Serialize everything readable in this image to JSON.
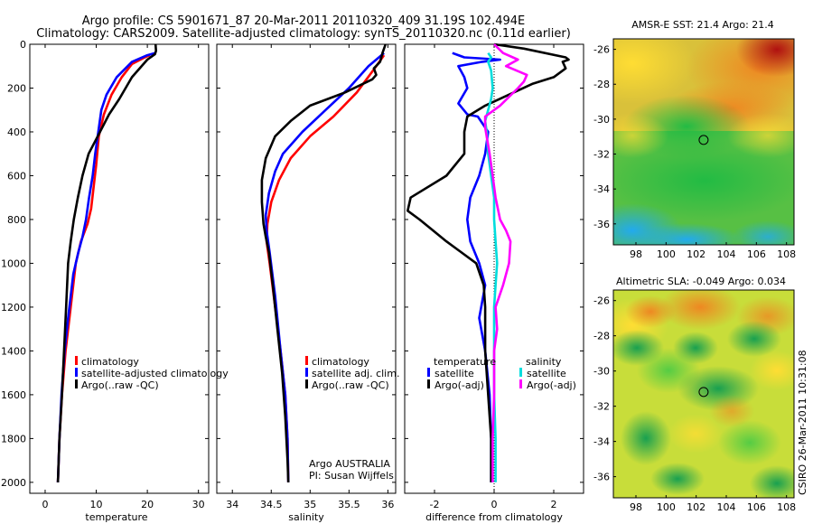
{
  "header": {
    "line1": "Argo profile: CS 5901671_87 20-Mar-2011 20110320_409 31.19S 102.494E",
    "line2": "Climatology: CARS2009. Satellite-adjusted climatology: synTS_20110320.nc (0.11d earlier)"
  },
  "side_stamp": "CSIRO 26-Mar-2011 10:31:08",
  "chart_data": [
    {
      "id": "temperature",
      "type": "line",
      "xlabel": "temperature",
      "ylabel": "",
      "xlim": [
        -3,
        32
      ],
      "ylim": [
        2050,
        0
      ],
      "xticks": [
        0,
        10,
        20,
        30
      ],
      "yticks": [
        0,
        200,
        400,
        600,
        800,
        1000,
        1200,
        1400,
        1600,
        1800,
        2000
      ],
      "legend": {
        "position": "bottom-center",
        "entries": [
          "climatology",
          "satellite-adjusted climatology",
          "Argo(..raw -QC)"
        ]
      },
      "series": [
        {
          "name": "climatology",
          "color": "#ff0000",
          "points": [
            [
              20.5,
              50
            ],
            [
              19.5,
              60
            ],
            [
              17,
              90
            ],
            [
              15,
              150
            ],
            [
              13,
              230
            ],
            [
              11.5,
              320
            ],
            [
              10.5,
              420
            ],
            [
              10,
              550
            ],
            [
              9.5,
              650
            ],
            [
              9,
              750
            ],
            [
              8.3,
              820
            ],
            [
              7,
              900
            ],
            [
              6,
              1000
            ],
            [
              5,
              1200
            ],
            [
              4,
              1400
            ],
            [
              3.3,
              1600
            ],
            [
              2.8,
              1800
            ],
            [
              2.5,
              2000
            ]
          ]
        },
        {
          "name": "satellite-adjusted climatology",
          "color": "#0000ff",
          "points": [
            [
              21.5,
              40
            ],
            [
              20,
              50
            ],
            [
              17,
              80
            ],
            [
              14,
              150
            ],
            [
              12,
              230
            ],
            [
              11,
              300
            ],
            [
              10.4,
              400
            ],
            [
              9.8,
              500
            ],
            [
              9.3,
              600
            ],
            [
              8.6,
              700
            ],
            [
              8,
              800
            ],
            [
              7.3,
              880
            ],
            [
              6.5,
              950
            ],
            [
              5.5,
              1050
            ],
            [
              4.5,
              1250
            ],
            [
              3.8,
              1400
            ],
            [
              3.2,
              1600
            ],
            [
              2.8,
              1800
            ],
            [
              2.5,
              2000
            ]
          ]
        },
        {
          "name": "Argo(..raw -QC)",
          "color": "#000000",
          "points": [
            [
              21.6,
              0
            ],
            [
              21.7,
              30
            ],
            [
              21.5,
              45
            ],
            [
              20,
              70
            ],
            [
              17,
              150
            ],
            [
              14.5,
              250
            ],
            [
              12.5,
              320
            ],
            [
              10.3,
              420
            ],
            [
              8.5,
              500
            ],
            [
              7.3,
              600
            ],
            [
              6.4,
              700
            ],
            [
              5.6,
              800
            ],
            [
              5,
              900
            ],
            [
              4.5,
              1000
            ],
            [
              4.1,
              1200
            ],
            [
              3.7,
              1400
            ],
            [
              3.3,
              1600
            ],
            [
              2.8,
              1800
            ],
            [
              2.5,
              2000
            ]
          ]
        }
      ]
    },
    {
      "id": "salinity",
      "type": "line",
      "xlabel": "salinity",
      "xlim": [
        33.8,
        36.1
      ],
      "ylim": [
        2050,
        0
      ],
      "xticks": [
        34,
        34.5,
        35,
        35.5,
        36
      ],
      "yticks": [
        0,
        200,
        400,
        600,
        800,
        1000,
        1200,
        1400,
        1600,
        1800,
        2000
      ],
      "legend": {
        "position": "bottom-center",
        "entries": [
          "climatology",
          "satellite adj. clim.",
          "Argo(..raw -QC)"
        ]
      },
      "series": [
        {
          "name": "climatology",
          "color": "#ff0000",
          "points": [
            [
              35.95,
              50
            ],
            [
              35.85,
              100
            ],
            [
              35.6,
              220
            ],
            [
              35.3,
              330
            ],
            [
              35,
              420
            ],
            [
              34.75,
              520
            ],
            [
              34.6,
              620
            ],
            [
              34.5,
              720
            ],
            [
              34.45,
              820
            ],
            [
              34.44,
              900
            ],
            [
              34.48,
              1000
            ],
            [
              34.55,
              1200
            ],
            [
              34.62,
              1400
            ],
            [
              34.68,
              1600
            ],
            [
              34.71,
              1800
            ],
            [
              34.72,
              2000
            ]
          ]
        },
        {
          "name": "satellite adj. clim.",
          "color": "#0000ff",
          "points": [
            [
              35.95,
              40
            ],
            [
              35.75,
              100
            ],
            [
              35.5,
              200
            ],
            [
              35.2,
              300
            ],
            [
              34.9,
              400
            ],
            [
              34.65,
              500
            ],
            [
              34.55,
              580
            ],
            [
              34.47,
              680
            ],
            [
              34.43,
              780
            ],
            [
              34.44,
              850
            ],
            [
              34.48,
              950
            ],
            [
              34.55,
              1150
            ],
            [
              34.62,
              1400
            ],
            [
              34.68,
              1600
            ],
            [
              34.71,
              1800
            ],
            [
              34.72,
              2000
            ]
          ]
        },
        {
          "name": "Argo(..raw -QC)",
          "color": "#000000",
          "points": [
            [
              35.97,
              0
            ],
            [
              35.93,
              40
            ],
            [
              35.9,
              80
            ],
            [
              35.82,
              110
            ],
            [
              35.85,
              140
            ],
            [
              35.8,
              160
            ],
            [
              35.45,
              220
            ],
            [
              35,
              280
            ],
            [
              34.75,
              350
            ],
            [
              34.55,
              420
            ],
            [
              34.43,
              520
            ],
            [
              34.38,
              620
            ],
            [
              34.38,
              720
            ],
            [
              34.4,
              820
            ],
            [
              34.43,
              880
            ],
            [
              34.47,
              950
            ],
            [
              34.52,
              1100
            ],
            [
              34.58,
              1300
            ],
            [
              34.64,
              1500
            ],
            [
              34.68,
              1700
            ],
            [
              34.71,
              1900
            ],
            [
              34.72,
              2000
            ]
          ]
        }
      ],
      "annotations": [
        "Argo AUSTRALIA",
        "PI: Susan Wijffels"
      ]
    },
    {
      "id": "difference",
      "type": "line",
      "xlabel": "difference from climatology",
      "xlim": [
        -3,
        3
      ],
      "ylim": [
        2050,
        0
      ],
      "xticks": [
        -2,
        0,
        2
      ],
      "yticks": [
        0,
        200,
        400,
        600,
        800,
        1000,
        1200,
        1400,
        1600,
        1800,
        2000
      ],
      "legend": {
        "position": "bottom",
        "entries": [
          "temperature",
          "satellite",
          "Argo(-adj)",
          "salinity",
          "satellite",
          "Argo(-adj)"
        ]
      },
      "series": [
        {
          "name": "temperature satellite",
          "color": "#0000ff",
          "points": [
            [
              -1.4,
              40
            ],
            [
              -1,
              60
            ],
            [
              0.2,
              70
            ],
            [
              -0.4,
              80
            ],
            [
              -1.2,
              100
            ],
            [
              -1,
              150
            ],
            [
              -0.9,
              200
            ],
            [
              -1.2,
              270
            ],
            [
              -0.9,
              320
            ],
            [
              -0.55,
              330
            ],
            [
              -0.2,
              400
            ],
            [
              -0.3,
              500
            ],
            [
              -0.5,
              600
            ],
            [
              -0.8,
              700
            ],
            [
              -0.9,
              800
            ],
            [
              -0.8,
              900
            ],
            [
              -0.5,
              1000
            ],
            [
              -0.3,
              1100
            ],
            [
              -0.5,
              1250
            ],
            [
              -0.3,
              1400
            ],
            [
              -0.15,
              1600
            ],
            [
              -0.1,
              1800
            ],
            [
              -0.1,
              2000
            ]
          ]
        },
        {
          "name": "temperature Argo(-adj)",
          "color": "#000000",
          "points": [
            [
              0,
              0
            ],
            [
              1,
              20
            ],
            [
              2.4,
              60
            ],
            [
              2.5,
              70
            ],
            [
              2.3,
              80
            ],
            [
              2.4,
              110
            ],
            [
              2,
              150
            ],
            [
              1.3,
              180
            ],
            [
              -0.3,
              280
            ],
            [
              -0.9,
              330
            ],
            [
              -1,
              400
            ],
            [
              -1,
              500
            ],
            [
              -1.6,
              600
            ],
            [
              -2.8,
              700
            ],
            [
              -2.9,
              760
            ],
            [
              -2.5,
              800
            ],
            [
              -1.6,
              900
            ],
            [
              -0.6,
              1000
            ],
            [
              -0.35,
              1100
            ],
            [
              -0.3,
              1200
            ],
            [
              -0.3,
              1400
            ],
            [
              -0.2,
              1600
            ],
            [
              -0.1,
              1800
            ],
            [
              -0.1,
              2000
            ]
          ]
        },
        {
          "name": "salinity satellite",
          "color": "#00dddd",
          "points": [
            [
              -0.2,
              40
            ],
            [
              -0.1,
              60
            ],
            [
              -0.2,
              80
            ],
            [
              -0.1,
              120
            ],
            [
              -0.05,
              200
            ],
            [
              -0.1,
              250
            ],
            [
              -0.2,
              300
            ],
            [
              -0.3,
              350
            ],
            [
              -0.25,
              400
            ],
            [
              -0.2,
              500
            ],
            [
              -0.1,
              600
            ],
            [
              0,
              700
            ],
            [
              0,
              800
            ],
            [
              0.05,
              900
            ],
            [
              0.1,
              1000
            ],
            [
              0.05,
              1100
            ],
            [
              0,
              1200
            ],
            [
              0,
              1400
            ],
            [
              0,
              1600
            ],
            [
              0.05,
              1800
            ],
            [
              0.05,
              2000
            ]
          ]
        },
        {
          "name": "salinity Argo(-adj)",
          "color": "#ff00ff",
          "points": [
            [
              0,
              0
            ],
            [
              0.3,
              40
            ],
            [
              0.8,
              70
            ],
            [
              0.4,
              100
            ],
            [
              1.1,
              140
            ],
            [
              1,
              170
            ],
            [
              0.8,
              200
            ],
            [
              0.2,
              280
            ],
            [
              -0.3,
              330
            ],
            [
              -0.3,
              380
            ],
            [
              -0.15,
              500
            ],
            [
              -0.05,
              600
            ],
            [
              0.05,
              700
            ],
            [
              0.2,
              800
            ],
            [
              0.4,
              850
            ],
            [
              0.55,
              900
            ],
            [
              0.5,
              1000
            ],
            [
              0.3,
              1100
            ],
            [
              0.05,
              1200
            ],
            [
              0.1,
              1300
            ],
            [
              0,
              1400
            ],
            [
              0,
              1600
            ],
            [
              -0.05,
              1800
            ],
            [
              -0.05,
              2000
            ]
          ]
        }
      ]
    },
    {
      "id": "sst_map",
      "type": "heatmap",
      "title": "AMSR-E SST: 21.4 Argo: 21.4",
      "xlim": [
        96.5,
        108.5
      ],
      "ylim": [
        -37.2,
        -25.4
      ],
      "xticks": [
        98,
        100,
        102,
        104,
        106,
        108
      ],
      "yticks": [
        -26,
        -28,
        -30,
        -32,
        -34,
        -36
      ],
      "marker": [
        102.494,
        -31.19
      ]
    },
    {
      "id": "sla_map",
      "type": "heatmap",
      "title": "Altimetric SLA: -0.049 Argo: 0.034",
      "xlim": [
        96.5,
        108.5
      ],
      "ylim": [
        -37.2,
        -25.4
      ],
      "xticks": [
        98,
        100,
        102,
        104,
        106,
        108
      ],
      "yticks": [
        -26,
        -28,
        -30,
        -32,
        -34,
        -36
      ],
      "marker": [
        102.494,
        -31.19
      ]
    }
  ],
  "colors": {
    "climatology": "#ff0000",
    "satellite": "#0000ff",
    "argo": "#000000",
    "sal_satellite": "#00dddd",
    "sal_argo": "#ff00ff"
  }
}
